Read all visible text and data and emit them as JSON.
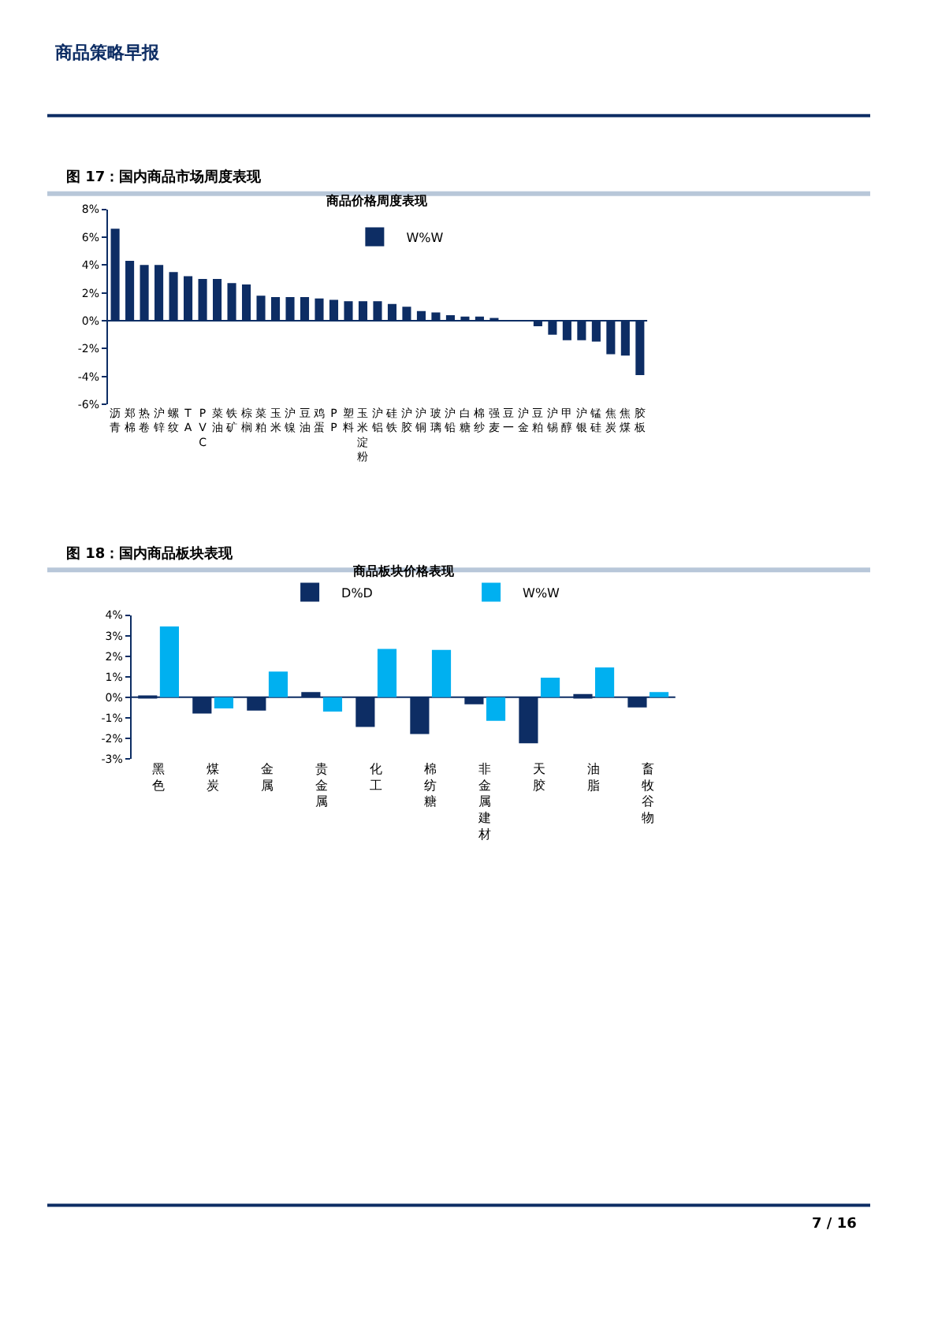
{
  "chart_data": [
    {
      "type": "bar",
      "title": "图 17：国内商品市场周度表现",
      "subtitle": "商品价格周度表现",
      "annotations": [
        "商品策略早报"
      ],
      "categories": [
        "沥青",
        "郑棉",
        "热卷",
        "沪锌",
        "螺纹",
        "TA",
        "PVC",
        "菜油",
        "铁矿",
        "棕榈",
        "菜粕",
        "玉米",
        "沪镍",
        "豆油",
        "鸡蛋",
        "PP",
        "塑料",
        "玉米淀粉",
        "沪铝",
        "硅铁",
        "沪胶",
        "沪铜",
        "玻璃",
        "沪铅",
        "白糖",
        "棉纱",
        "强麦",
        "豆一",
        "沪金",
        "豆粕",
        "沪锡",
        "甲醇",
        "沪银",
        "锰硅",
        "焦炭",
        "焦煤",
        "胶板"
      ],
      "series": [
        {
          "name": "W%W",
          "color": "#0d2d64",
          "values": [
            6.6,
            4.3,
            4.0,
            4.0,
            3.5,
            3.2,
            3.0,
            3.0,
            2.7,
            2.6,
            1.8,
            1.7,
            1.7,
            1.7,
            1.6,
            1.5,
            1.4,
            1.4,
            1.4,
            1.2,
            1.0,
            0.7,
            0.6,
            0.4,
            0.3,
            0.3,
            0.1,
            0,
            0,
            -0.4,
            -1.0,
            -1.4,
            -1.4,
            -1.5,
            -2.4,
            -2.5,
            -3.9
          ]
        }
      ],
      "ylim": [
        -6,
        8
      ],
      "yticks": [
        {
          "value": -6,
          "label": "-6%"
        },
        {
          "value": -4,
          "label": "-4%"
        },
        {
          "value": -2,
          "label": "-2%"
        },
        {
          "value": 0,
          "label": "0%"
        },
        {
          "value": 2,
          "label": "2%"
        },
        {
          "value": 4,
          "label": "4%"
        },
        {
          "value": 6,
          "label": "6%"
        },
        {
          "value": 8,
          "label": "8%"
        }
      ],
      "ref_lines": [
        {
          "axis": "y",
          "value": 0,
          "color": "#0d2d64"
        }
      ],
      "legend": "top"
    },
    {
      "type": "bar",
      "title": "图 18：国内商品板块表现",
      "subtitle": "商品板块价格表现",
      "annotations": [
        "7 / 16"
      ],
      "categories": [
        "黑色",
        "煤炭",
        "金属",
        "贵金属",
        "化工",
        "棉纺糖",
        "非金属建材",
        "天胶",
        "油脂",
        "畜牧谷物"
      ],
      "series": [
        {
          "name": "D%D",
          "color": "#0d2d64",
          "values": [
            0.05,
            -0.8,
            -0.65,
            0.25,
            -1.45,
            -1.8,
            -0.35,
            -2.25,
            0.15,
            -0.5
          ]
        },
        {
          "name": "W%W",
          "color": "#00b0f0",
          "values": [
            3.45,
            -0.55,
            1.25,
            -0.7,
            2.35,
            2.3,
            -1.15,
            0.95,
            1.45,
            0.25
          ]
        }
      ],
      "ylim": [
        -3,
        4
      ],
      "yticks": [
        {
          "value": -3,
          "label": "-3%"
        },
        {
          "value": -2,
          "label": "-2%"
        },
        {
          "value": -1,
          "label": "-1%"
        },
        {
          "value": 0,
          "label": "0%"
        },
        {
          "value": 1,
          "label": "1%"
        },
        {
          "value": 2,
          "label": "2%"
        },
        {
          "value": 3,
          "label": "3%"
        },
        {
          "value": 4,
          "label": "4%"
        }
      ],
      "ref_lines": [
        {
          "axis": "y",
          "value": 0,
          "color": "#0d2d64"
        }
      ],
      "legend": "top"
    }
  ]
}
